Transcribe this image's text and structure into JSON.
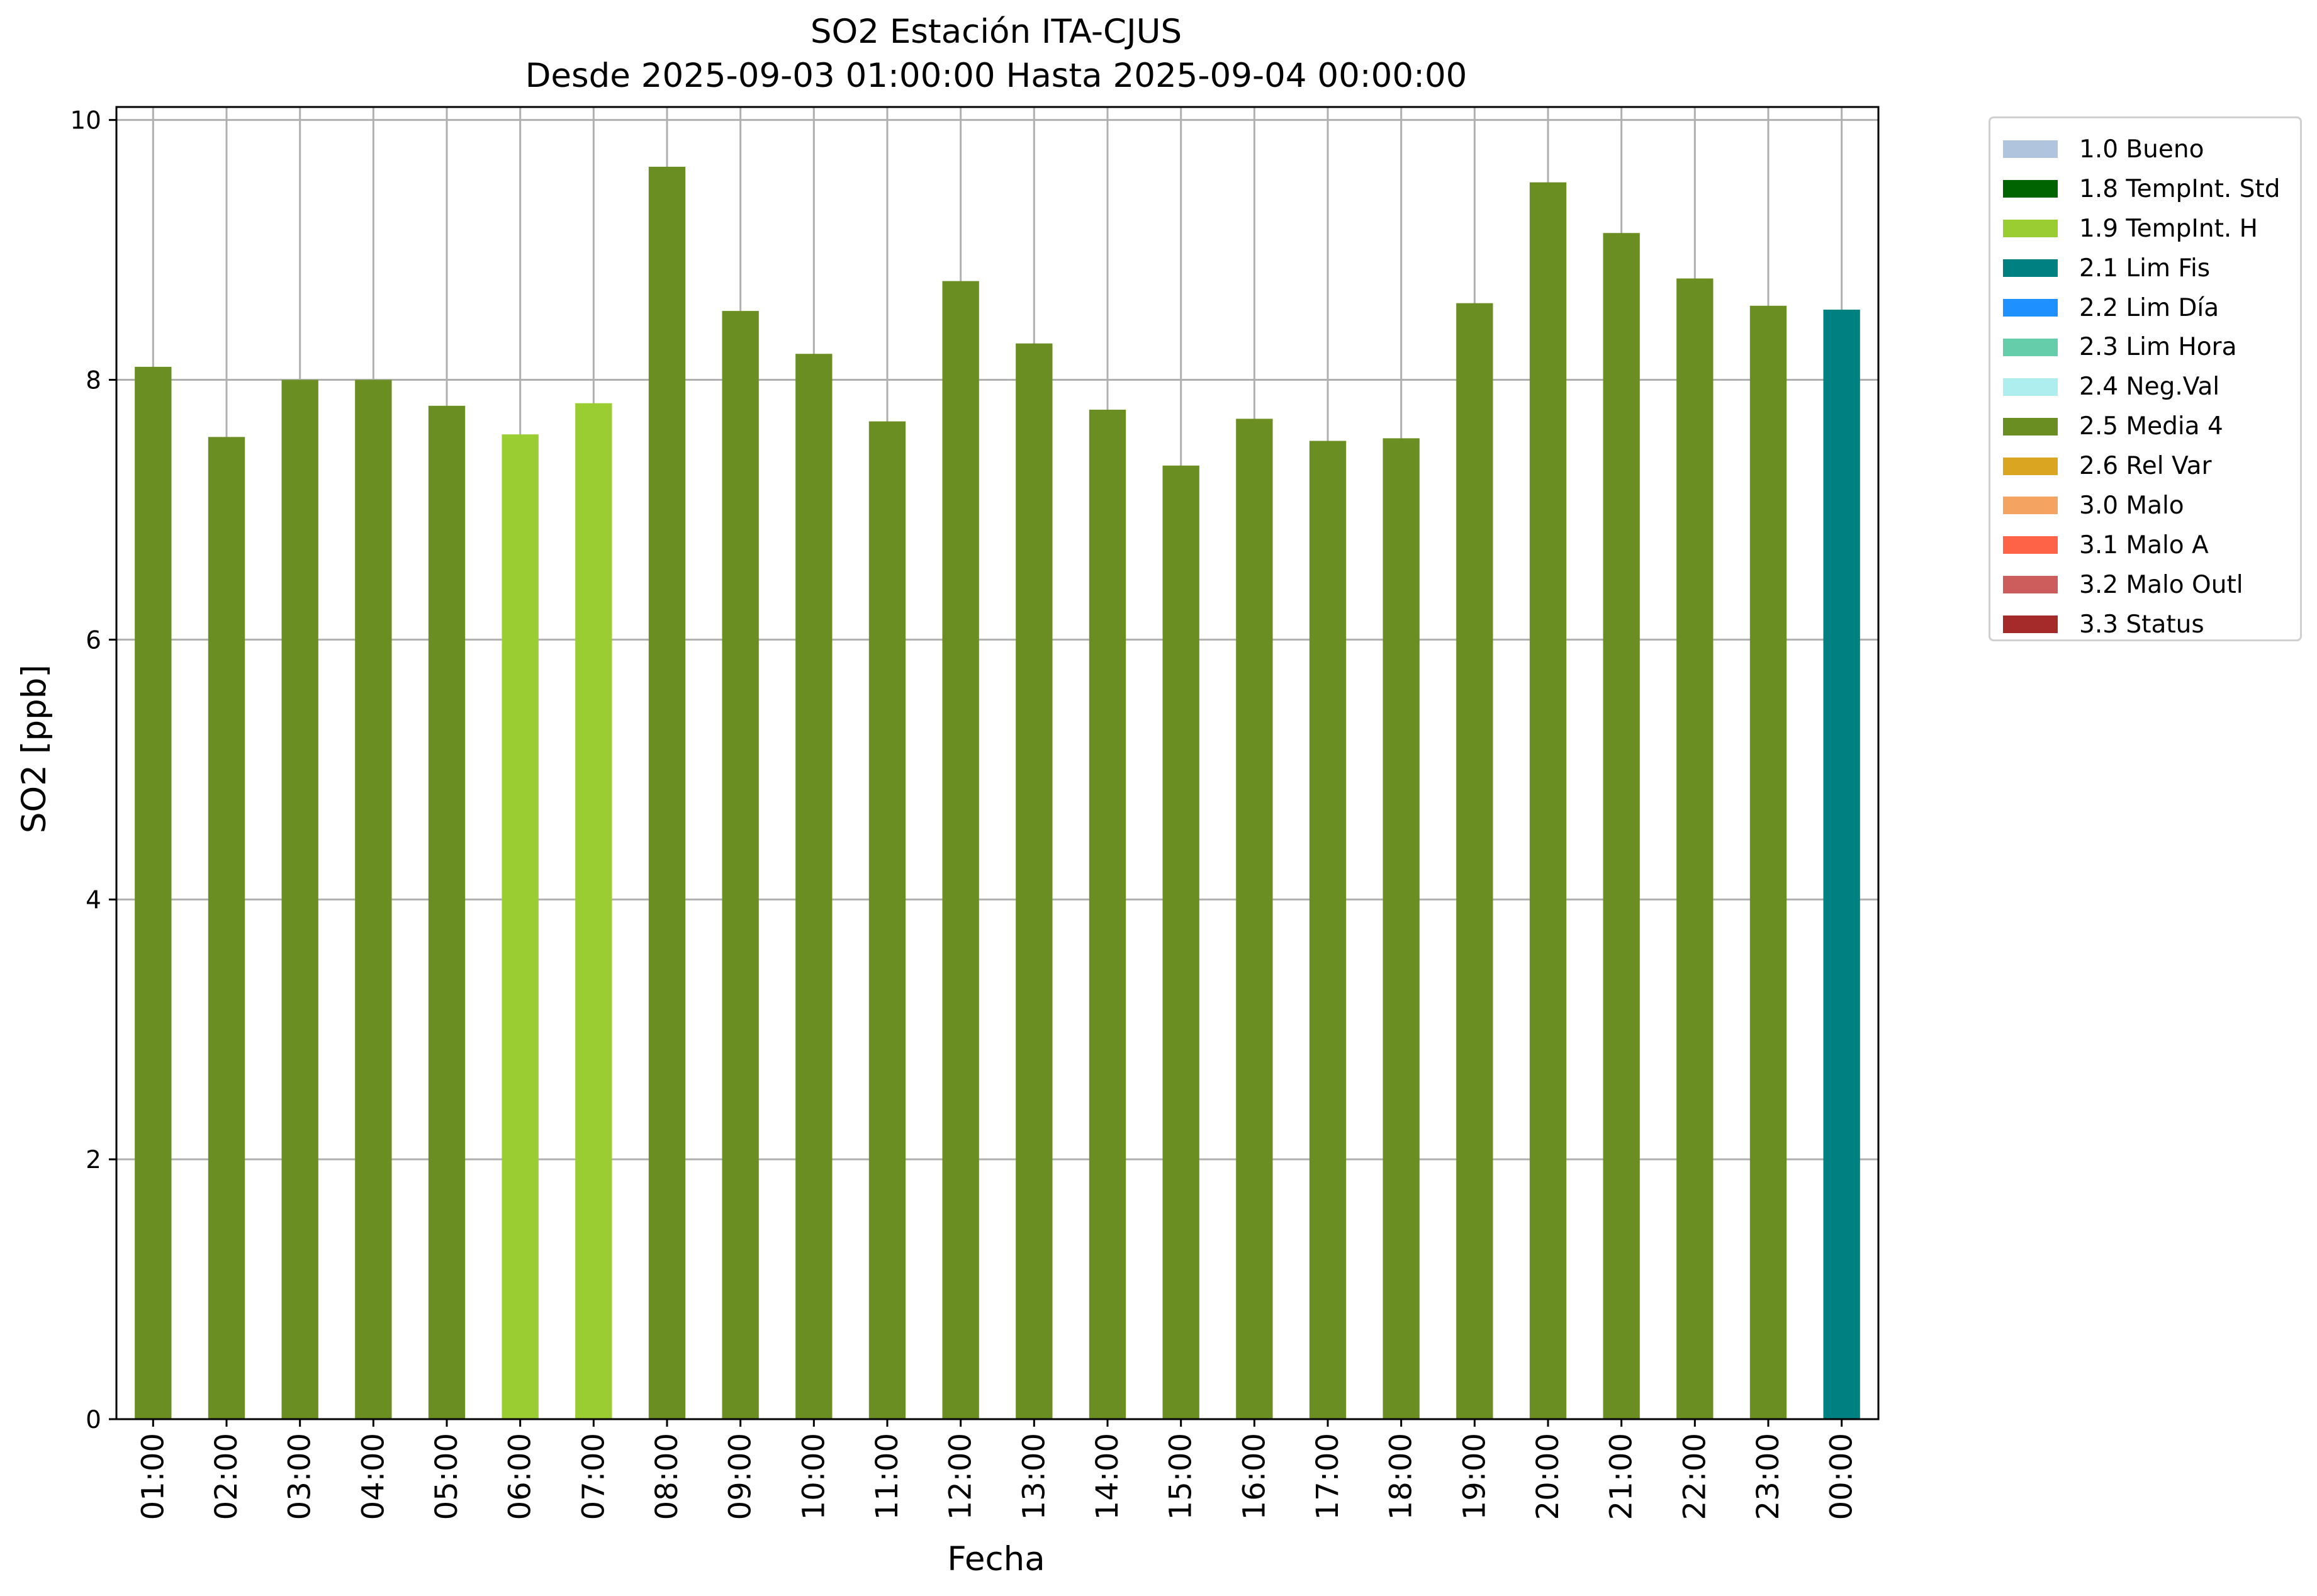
{
  "chart_data": {
    "type": "bar",
    "title": "SO2 Estación ITA-CJUS",
    "subtitle": "Desde 2025-09-03 01:00:00 Hasta 2025-09-04 00:00:00",
    "xlabel": "Fecha",
    "ylabel": "SO2 [ppb]",
    "ylim": [
      0,
      10.1
    ],
    "yticks": [
      "0",
      "2",
      "4",
      "6",
      "8",
      "10"
    ],
    "grid": true,
    "legend_position": "outside-top-right",
    "categories": [
      "01:00",
      "02:00",
      "03:00",
      "04:00",
      "05:00",
      "06:00",
      "07:00",
      "08:00",
      "09:00",
      "10:00",
      "11:00",
      "12:00",
      "13:00",
      "14:00",
      "15:00",
      "16:00",
      "17:00",
      "18:00",
      "19:00",
      "20:00",
      "21:00",
      "22:00",
      "23:00",
      "00:00"
    ],
    "values": [
      8.1,
      7.56,
      8.0,
      8.0,
      7.8,
      7.58,
      7.82,
      9.64,
      8.53,
      8.2,
      7.68,
      8.76,
      8.28,
      7.77,
      7.34,
      7.7,
      7.53,
      7.55,
      8.59,
      9.52,
      9.13,
      8.78,
      8.57,
      8.54
    ],
    "flags": [
      "2.5 Media 4",
      "2.5 Media 4",
      "2.5 Media 4",
      "2.5 Media 4",
      "2.5 Media 4",
      "1.9 TempInt. H",
      "1.9 TempInt. H",
      "2.5 Media 4",
      "2.5 Media 4",
      "2.5 Media 4",
      "2.5 Media 4",
      "2.5 Media 4",
      "2.5 Media 4",
      "2.5 Media 4",
      "2.5 Media 4",
      "2.5 Media 4",
      "2.5 Media 4",
      "2.5 Media 4",
      "2.5 Media 4",
      "2.5 Media 4",
      "2.5 Media 4",
      "2.5 Media 4",
      "2.5 Media 4",
      "2.1 Lim Fis"
    ],
    "legend": [
      {
        "label": "1.0 Bueno",
        "color": "#b0c4de"
      },
      {
        "label": "1.8 TempInt. Std",
        "color": "#006400"
      },
      {
        "label": "1.9 TempInt. H",
        "color": "#9acd32"
      },
      {
        "label": "2.1 Lim Fis",
        "color": "#008080"
      },
      {
        "label": "2.2 Lim Día",
        "color": "#1e90ff"
      },
      {
        "label": "2.3 Lim Hora",
        "color": "#66cdaa"
      },
      {
        "label": "2.4 Neg.Val",
        "color": "#afeeee"
      },
      {
        "label": "2.5 Media 4",
        "color": "#6b8e23"
      },
      {
        "label": "2.6 Rel Var",
        "color": "#daa520"
      },
      {
        "label": "3.0 Malo",
        "color": "#f4a460"
      },
      {
        "label": "3.1 Malo A",
        "color": "#ff6347"
      },
      {
        "label": "3.2 Malo Outl",
        "color": "#cd5c5c"
      },
      {
        "label": "3.3 Status",
        "color": "#a52a2a"
      }
    ]
  }
}
